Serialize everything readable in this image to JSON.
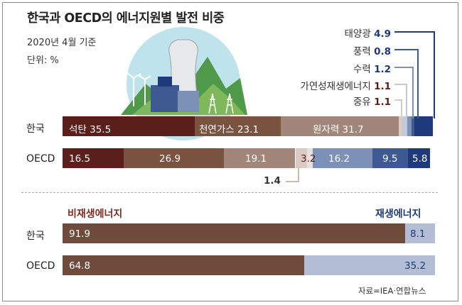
{
  "header": {
    "title": "한국과 OECD의 에너지원별 발전 비중",
    "subtitle": "2020년 4월 기준",
    "unit": "단위: %"
  },
  "chart_data": [
    {
      "type": "bar",
      "stacked": true,
      "orientation": "horizontal",
      "title": "한국과 OECD의 에너지원별 발전 비중",
      "categories": [
        "한국",
        "OECD"
      ],
      "series": [
        {
          "name": "석탄",
          "values": [
            35.5,
            16.5
          ],
          "color": "#5a1f1a"
        },
        {
          "name": "천연가스",
          "values": [
            23.1,
            26.9
          ],
          "color": "#7a5240"
        },
        {
          "name": "원자력",
          "values": [
            31.7,
            19.1
          ],
          "color": "#a28679"
        },
        {
          "name": "중유",
          "values": [
            1.1,
            3.2
          ],
          "color": "#d9cbc4"
        },
        {
          "name": "",
          "values": [
            0,
            1.4
          ],
          "color": "#e8e0dc"
        },
        {
          "name": "가연성재생에너지",
          "values": [
            1.1,
            0
          ],
          "color": "#bfc9d9"
        },
        {
          "name": "수력",
          "values": [
            1.2,
            16.2
          ],
          "color": "#7d91b8"
        },
        {
          "name": "풍력",
          "values": [
            0.8,
            9.5
          ],
          "color": "#3f5a93"
        },
        {
          "name": "태양광",
          "values": [
            4.9,
            5.8
          ],
          "color": "#1f3a7a"
        }
      ],
      "xlim": [
        0,
        100
      ]
    },
    {
      "type": "bar",
      "stacked": true,
      "orientation": "horizontal",
      "categories": [
        "한국",
        "OECD"
      ],
      "series": [
        {
          "name": "비재생에너지",
          "values": [
            91.9,
            64.8
          ],
          "color": "#6e4b3a"
        },
        {
          "name": "재생에너지",
          "values": [
            8.1,
            35.2
          ],
          "color": "#b3bdd3"
        }
      ],
      "xlim": [
        0,
        100
      ]
    }
  ],
  "top_chart": {
    "rows": [
      "한국",
      "OECD"
    ],
    "korea_labels": {
      "coal": "석탄 35.5",
      "gas": "천연가스 23.1",
      "nuclear": "원자력 31.7"
    },
    "oecd_labels": {
      "coal": "16.5",
      "gas": "26.9",
      "nuclear": "19.1",
      "oil": "3.2",
      "other": "1.4",
      "hydro": "16.2",
      "wind": "9.5",
      "solar": "5.8"
    },
    "legend": [
      {
        "name": "태양광",
        "value": "4.9"
      },
      {
        "name": "풍력",
        "value": "0.8"
      },
      {
        "name": "수력",
        "value": "1.2"
      },
      {
        "name": "가연성재생에너지",
        "value": "1.1"
      },
      {
        "name": "중유",
        "value": "1.1"
      }
    ]
  },
  "bottom_chart": {
    "header_non_renewable": "비재생에너지",
    "header_renewable": "재생에너지",
    "rows": [
      {
        "label": "한국",
        "left_value": "91.9",
        "right_value": "8.1"
      },
      {
        "label": "OECD",
        "left_value": "64.8",
        "right_value": "35.2"
      }
    ]
  },
  "source": "자료=IEA·연합뉴스",
  "colors": {
    "coal": "#5a1f1a",
    "gas": "#7a5240",
    "nuclear": "#a28679",
    "renewable_dark": "#1f3a7a"
  }
}
